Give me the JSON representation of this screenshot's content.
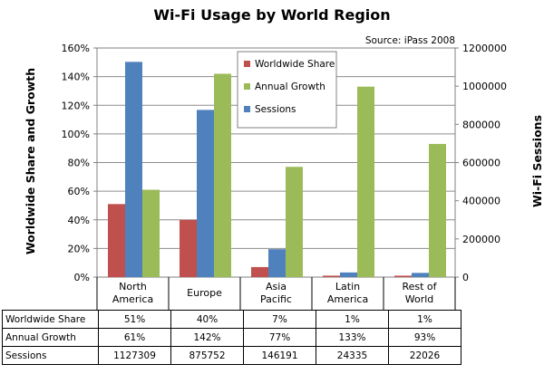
{
  "chart_data": {
    "type": "bar",
    "title": "Wi-Fi Usage by World Region",
    "source": "Source: iPass 2008",
    "ylabel_left": "Worldwide Share and Growth",
    "ylabel_right": "Wi-Fi Sessions",
    "categories": [
      [
        "North",
        "America"
      ],
      [
        "Europe"
      ],
      [
        "Asia",
        "Pacific"
      ],
      [
        "Latin",
        "America"
      ],
      [
        "Rest of",
        "World"
      ]
    ],
    "left_axis": {
      "ylim": [
        0,
        1.6
      ],
      "ticks": [
        0,
        0.2,
        0.4,
        0.6,
        0.8,
        1.0,
        1.2,
        1.4,
        1.6
      ],
      "tick_labels": [
        "0%",
        "20%",
        "40%",
        "60%",
        "80%",
        "100%",
        "120%",
        "140%",
        "160%"
      ]
    },
    "right_axis": {
      "ylim": [
        0,
        1200000
      ],
      "ticks": [
        0,
        200000,
        400000,
        600000,
        800000,
        1000000,
        1200000
      ],
      "tick_labels": [
        "0",
        "200000",
        "400000",
        "600000",
        "800000",
        "1000000",
        "1200000"
      ]
    },
    "series": [
      {
        "name": "Worldwide Share",
        "axis": "left",
        "color": "#c0504d",
        "values": [
          0.51,
          0.4,
          0.07,
          0.01,
          0.01
        ],
        "table_values": [
          "51%",
          "40%",
          "7%",
          "1%",
          "1%"
        ]
      },
      {
        "name": "Annual Growth",
        "axis": "left",
        "color": "#9bbb59",
        "values": [
          0.61,
          1.42,
          0.77,
          1.33,
          0.93
        ],
        "table_values": [
          "61%",
          "142%",
          "77%",
          "133%",
          "93%"
        ]
      },
      {
        "name": "Sessions",
        "axis": "right",
        "color": "#4f81bd",
        "values": [
          1127309,
          875752,
          146191,
          24335,
          22026
        ],
        "table_values": [
          "1127309",
          "875752",
          "146191",
          "24335",
          "22026"
        ]
      }
    ],
    "bar_order": [
      "Worldwide Share",
      "Sessions",
      "Annual Growth"
    ],
    "legend_position": "top-center",
    "grid": true
  }
}
